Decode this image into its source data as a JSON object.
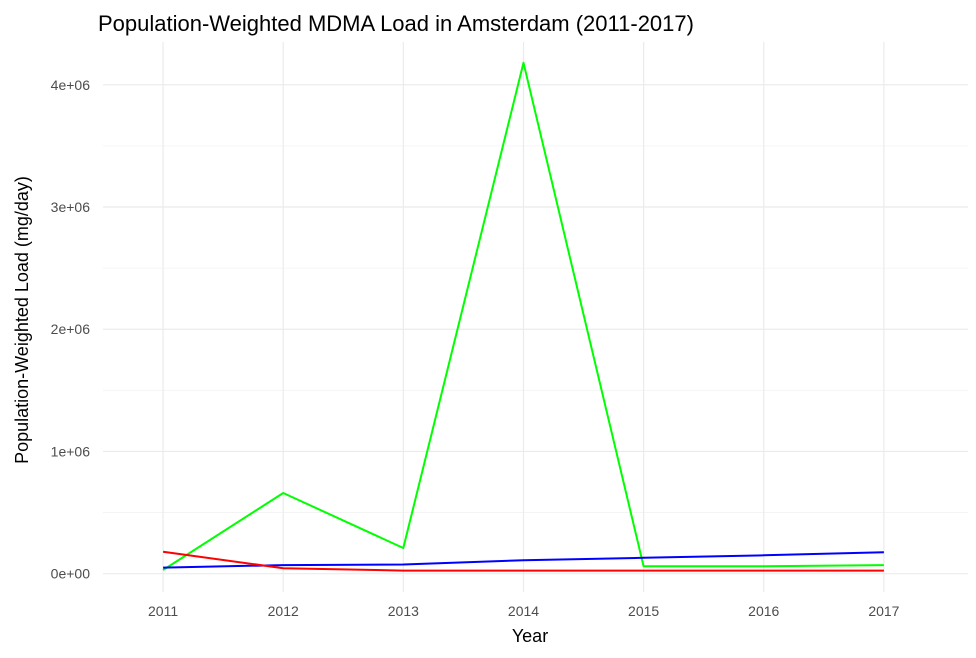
{
  "chart_data": {
    "type": "line",
    "title": "Population-Weighted MDMA Load in Amsterdam (2011-2017)",
    "xlabel": "Year",
    "ylabel": "Population-Weighted Load (mg/day)",
    "x": [
      2011,
      2012,
      2013,
      2014,
      2015,
      2016,
      2017
    ],
    "xlim": [
      2010.5,
      2017.7
    ],
    "ylim": [
      -150000,
      4350000
    ],
    "x_ticks": [
      "2011",
      "2012",
      "2013",
      "2014",
      "2015",
      "2016",
      "2017"
    ],
    "y_ticks": [
      {
        "value": 0,
        "label": "0e+00"
      },
      {
        "value": 1000000,
        "label": "1e+06"
      },
      {
        "value": 2000000,
        "label": "2e+06"
      },
      {
        "value": 3000000,
        "label": "3e+06"
      },
      {
        "value": 4000000,
        "label": "4e+06"
      }
    ],
    "grid": true,
    "legend": "none",
    "series": [
      {
        "color": "#00ff00",
        "values": [
          30000,
          660000,
          210000,
          4180000,
          60000,
          60000,
          70000
        ]
      },
      {
        "color": "#0000ff",
        "values": [
          50000,
          70000,
          75000,
          110000,
          130000,
          150000,
          175000
        ]
      },
      {
        "color": "#ff0000",
        "values": [
          180000,
          45000,
          25000,
          25000,
          25000,
          25000,
          25000
        ]
      }
    ]
  }
}
